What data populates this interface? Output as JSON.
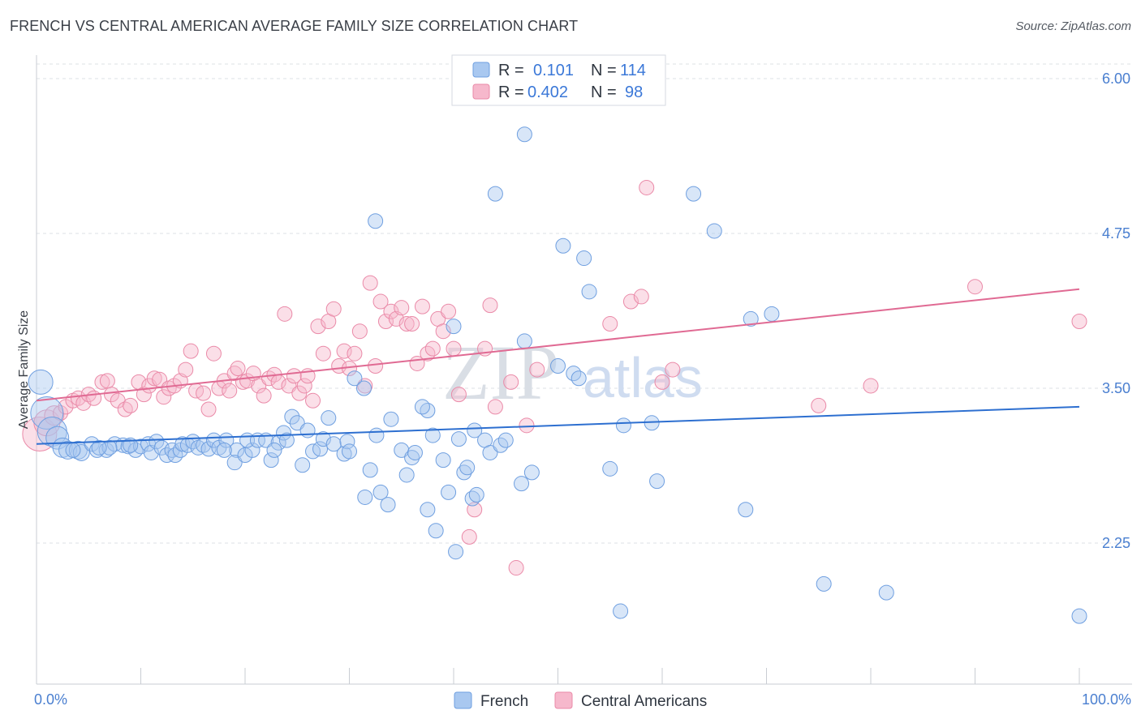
{
  "header": {
    "title": "FRENCH VS CENTRAL AMERICAN AVERAGE FAMILY SIZE CORRELATION CHART",
    "source": "Source: ZipAtlas.com"
  },
  "watermark": {
    "zip": "ZIP",
    "atlas": "atlas"
  },
  "legend": {
    "rows": [
      {
        "r_label": "R =",
        "r_value": "0.101",
        "n_label": "N =",
        "n_value": "114"
      },
      {
        "r_label": "R =",
        "r_value": "0.402",
        "n_label": "N =",
        "n_value": "98"
      }
    ]
  },
  "bottom_legend": {
    "french": "French",
    "central": "Central Americans"
  },
  "colors": {
    "french_fill": "#a9c8f0",
    "french_stroke": "#6f9fe0",
    "french_line": "#2d6fd0",
    "central_fill": "#f6b8cc",
    "central_stroke": "#ea8aa8",
    "central_line": "#e06a93",
    "axis_text": "#4a7fd0",
    "grid": "#dde1e6"
  },
  "chart_data": {
    "type": "scatter",
    "title": "FRENCH VS CENTRAL AMERICAN AVERAGE FAMILY SIZE CORRELATION CHART",
    "xlabel": "",
    "ylabel": "Average Family Size",
    "xlim": [
      0,
      100
    ],
    "ylim": [
      1.0,
      6.15
    ],
    "y_ticks": [
      2.25,
      3.5,
      4.75,
      6.0
    ],
    "y_tick_labels": [
      "2.25",
      "3.50",
      "4.75",
      "6.00"
    ],
    "x_tick_labels": [
      "0.0%",
      "100.0%"
    ],
    "grid": "horizontal dashed",
    "series": [
      {
        "name": "French",
        "r": 0.101,
        "n": 114,
        "trend": [
          [
            0,
            3.05
          ],
          [
            100,
            3.35
          ]
        ],
        "points": [
          [
            0.4,
            3.55,
            24
          ],
          [
            1.0,
            3.3,
            34
          ],
          [
            1.5,
            3.15,
            30
          ],
          [
            2.0,
            3.1,
            22
          ],
          [
            2.5,
            3.02,
            18
          ],
          [
            3.0,
            3.0,
            16
          ],
          [
            4.0,
            3.0,
            16
          ],
          [
            4.3,
            2.98,
            14
          ],
          [
            5.3,
            3.05,
            12
          ],
          [
            5.8,
            3.0,
            12
          ],
          [
            6.7,
            3.0,
            12
          ],
          [
            7.5,
            3.05,
            12
          ],
          [
            8.3,
            3.04,
            12
          ],
          [
            8.8,
            3.03,
            12
          ],
          [
            9.5,
            3.0,
            12
          ],
          [
            10.0,
            3.03,
            12
          ],
          [
            10.7,
            3.05,
            12
          ],
          [
            11.0,
            2.98,
            12
          ],
          [
            11.5,
            3.07,
            12
          ],
          [
            12.0,
            3.02,
            12
          ],
          [
            12.5,
            2.96,
            12
          ],
          [
            13.0,
            3.0,
            12
          ],
          [
            13.3,
            2.96,
            12
          ],
          [
            13.8,
            3.0,
            12
          ],
          [
            14.0,
            3.05,
            12
          ],
          [
            14.5,
            3.04,
            12
          ],
          [
            15.0,
            3.07,
            12
          ],
          [
            15.5,
            3.02,
            12
          ],
          [
            16.0,
            3.04,
            12
          ],
          [
            16.5,
            3.01,
            12
          ],
          [
            17.0,
            3.08,
            12
          ],
          [
            17.5,
            3.02,
            12
          ],
          [
            18.2,
            3.08,
            12
          ],
          [
            19.2,
            3.0,
            12
          ],
          [
            19.0,
            2.9,
            12
          ],
          [
            20.0,
            2.96,
            12
          ],
          [
            20.7,
            3.0,
            12
          ],
          [
            20.2,
            3.08,
            12
          ],
          [
            21.2,
            3.08,
            12
          ],
          [
            22.0,
            3.08,
            12
          ],
          [
            22.5,
            2.92,
            12
          ],
          [
            23.2,
            3.06,
            12
          ],
          [
            23.7,
            3.14,
            12
          ],
          [
            24.5,
            3.27,
            12
          ],
          [
            25.0,
            3.22,
            12
          ],
          [
            25.5,
            2.88,
            12
          ],
          [
            26.0,
            3.16,
            12
          ],
          [
            26.5,
            2.99,
            12
          ],
          [
            27.2,
            3.01,
            12
          ],
          [
            27.5,
            3.09,
            12
          ],
          [
            28.0,
            3.26,
            12
          ],
          [
            28.5,
            3.05,
            12
          ],
          [
            29.5,
            2.97,
            12
          ],
          [
            29.8,
            3.07,
            12
          ],
          [
            30.5,
            3.58,
            12
          ],
          [
            31.4,
            3.5,
            12
          ],
          [
            32.0,
            2.84,
            12
          ],
          [
            31.5,
            2.62,
            12
          ],
          [
            32.6,
            3.12,
            12
          ],
          [
            33.0,
            2.66,
            12
          ],
          [
            33.7,
            2.56,
            12
          ],
          [
            34.0,
            3.25,
            12
          ],
          [
            35.0,
            3.0,
            12
          ],
          [
            35.5,
            2.8,
            12
          ],
          [
            36.0,
            2.94,
            12
          ],
          [
            36.3,
            2.98,
            12
          ],
          [
            37.5,
            3.32,
            12
          ],
          [
            37.0,
            3.35,
            12
          ],
          [
            38.0,
            3.12,
            12
          ],
          [
            38.3,
            2.35,
            12
          ],
          [
            39.0,
            2.92,
            12
          ],
          [
            39.5,
            2.66,
            12
          ],
          [
            40.0,
            4.0,
            12
          ],
          [
            40.2,
            2.18,
            12
          ],
          [
            40.5,
            3.09,
            12
          ],
          [
            41.0,
            2.82,
            12
          ],
          [
            41.8,
            2.61,
            12
          ],
          [
            42.2,
            2.64,
            12
          ],
          [
            42.0,
            3.16,
            12
          ],
          [
            43.0,
            3.08,
            12
          ],
          [
            43.5,
            2.98,
            12
          ],
          [
            46.5,
            2.73,
            12
          ],
          [
            46.8,
            3.88,
            12
          ],
          [
            46.8,
            5.55,
            12
          ],
          [
            47.5,
            2.82,
            12
          ],
          [
            50.5,
            4.65,
            12
          ],
          [
            52.5,
            4.55,
            12
          ],
          [
            51.5,
            3.62,
            12
          ],
          [
            50.0,
            3.68,
            12
          ],
          [
            52.0,
            3.58,
            12
          ],
          [
            53.0,
            4.28,
            12
          ],
          [
            55.0,
            2.85,
            12
          ],
          [
            56.0,
            1.7,
            12
          ],
          [
            59.0,
            3.22,
            12
          ],
          [
            59.5,
            2.75,
            12
          ],
          [
            63.0,
            5.07,
            12
          ],
          [
            65.0,
            4.77,
            12
          ],
          [
            68.0,
            2.52,
            12
          ],
          [
            68.5,
            4.06,
            12
          ],
          [
            70.5,
            4.1,
            12
          ],
          [
            75.5,
            1.92,
            12
          ],
          [
            81.5,
            1.85,
            12
          ],
          [
            100.0,
            1.66,
            12
          ],
          [
            30.0,
            2.99,
            12
          ],
          [
            3.5,
            3.0,
            12
          ],
          [
            9.0,
            3.04,
            12
          ],
          [
            18.0,
            3.0,
            12
          ],
          [
            24.0,
            3.08,
            12
          ],
          [
            37.5,
            2.52,
            12
          ],
          [
            41.3,
            2.86,
            12
          ],
          [
            56.3,
            3.2,
            12
          ],
          [
            7.0,
            3.02,
            12
          ],
          [
            22.8,
            3.0,
            12
          ],
          [
            32.5,
            4.85,
            12
          ],
          [
            44.0,
            5.07,
            12
          ],
          [
            44.5,
            3.04,
            12
          ],
          [
            45.0,
            3.08,
            12
          ],
          [
            6.0,
            3.02,
            12
          ]
        ]
      },
      {
        "name": "Central Americans",
        "r": 0.402,
        "n": 98,
        "trend": [
          [
            0,
            3.4
          ],
          [
            100,
            4.3
          ]
        ],
        "points": [
          [
            0.3,
            3.13,
            36
          ],
          [
            1.0,
            3.22,
            26
          ],
          [
            1.7,
            3.28,
            18
          ],
          [
            2.3,
            3.3,
            12
          ],
          [
            2.8,
            3.35,
            12
          ],
          [
            3.5,
            3.4,
            12
          ],
          [
            4.0,
            3.42,
            12
          ],
          [
            4.5,
            3.38,
            12
          ],
          [
            5.0,
            3.45,
            12
          ],
          [
            5.5,
            3.42,
            12
          ],
          [
            6.3,
            3.55,
            12
          ],
          [
            6.8,
            3.56,
            12
          ],
          [
            7.2,
            3.45,
            12
          ],
          [
            7.8,
            3.4,
            12
          ],
          [
            8.5,
            3.33,
            12
          ],
          [
            9.0,
            3.36,
            12
          ],
          [
            9.8,
            3.55,
            12
          ],
          [
            10.3,
            3.45,
            12
          ],
          [
            10.8,
            3.52,
            12
          ],
          [
            11.3,
            3.58,
            12
          ],
          [
            11.8,
            3.57,
            12
          ],
          [
            12.2,
            3.43,
            12
          ],
          [
            12.7,
            3.5,
            12
          ],
          [
            13.2,
            3.52,
            12
          ],
          [
            13.8,
            3.56,
            12
          ],
          [
            14.3,
            3.65,
            12
          ],
          [
            14.8,
            3.8,
            12
          ],
          [
            15.3,
            3.48,
            12
          ],
          [
            16.0,
            3.46,
            12
          ],
          [
            16.5,
            3.33,
            12
          ],
          [
            17.0,
            3.78,
            12
          ],
          [
            17.5,
            3.5,
            12
          ],
          [
            18.0,
            3.56,
            12
          ],
          [
            18.5,
            3.48,
            12
          ],
          [
            19.0,
            3.62,
            12
          ],
          [
            19.3,
            3.66,
            12
          ],
          [
            19.8,
            3.55,
            12
          ],
          [
            20.2,
            3.56,
            12
          ],
          [
            20.8,
            3.62,
            12
          ],
          [
            21.3,
            3.52,
            12
          ],
          [
            21.8,
            3.44,
            12
          ],
          [
            22.3,
            3.58,
            12
          ],
          [
            22.8,
            3.61,
            12
          ],
          [
            23.2,
            3.55,
            12
          ],
          [
            23.8,
            4.1,
            12
          ],
          [
            24.2,
            3.52,
            12
          ],
          [
            24.7,
            3.6,
            12
          ],
          [
            25.2,
            3.46,
            12
          ],
          [
            25.7,
            3.52,
            12
          ],
          [
            26.0,
            3.6,
            12
          ],
          [
            26.5,
            3.4,
            12
          ],
          [
            27.0,
            4.0,
            12
          ],
          [
            27.5,
            3.78,
            12
          ],
          [
            28.0,
            4.04,
            12
          ],
          [
            28.5,
            4.14,
            12
          ],
          [
            29.0,
            3.68,
            12
          ],
          [
            29.5,
            3.8,
            12
          ],
          [
            30.0,
            3.66,
            12
          ],
          [
            30.5,
            3.78,
            12
          ],
          [
            31.0,
            3.96,
            12
          ],
          [
            31.5,
            3.52,
            12
          ],
          [
            32.0,
            4.35,
            12
          ],
          [
            32.5,
            3.68,
            12
          ],
          [
            33.0,
            4.2,
            12
          ],
          [
            33.5,
            4.04,
            12
          ],
          [
            34.0,
            4.12,
            12
          ],
          [
            34.5,
            4.06,
            12
          ],
          [
            35.0,
            4.15,
            12
          ],
          [
            35.5,
            4.02,
            12
          ],
          [
            36.0,
            4.02,
            12
          ],
          [
            36.5,
            3.7,
            12
          ],
          [
            37.0,
            4.16,
            12
          ],
          [
            37.5,
            3.78,
            12
          ],
          [
            38.0,
            3.82,
            12
          ],
          [
            38.5,
            4.06,
            12
          ],
          [
            39.0,
            3.96,
            12
          ],
          [
            39.5,
            4.12,
            12
          ],
          [
            40.0,
            3.82,
            12
          ],
          [
            40.5,
            3.45,
            12
          ],
          [
            41.5,
            2.3,
            12
          ],
          [
            42.0,
            2.52,
            12
          ],
          [
            43.0,
            3.82,
            12
          ],
          [
            43.5,
            4.17,
            12
          ],
          [
            44.0,
            3.35,
            12
          ],
          [
            45.5,
            3.55,
            12
          ],
          [
            46.0,
            2.05,
            12
          ],
          [
            47.0,
            3.2,
            12
          ],
          [
            48.0,
            3.65,
            12
          ],
          [
            55.0,
            4.02,
            12
          ],
          [
            57.0,
            4.2,
            12
          ],
          [
            58.0,
            4.24,
            12
          ],
          [
            60.0,
            3.55,
            12
          ],
          [
            61.0,
            3.65,
            12
          ],
          [
            75.0,
            3.36,
            12
          ],
          [
            80.0,
            3.52,
            12
          ],
          [
            90.0,
            4.32,
            12
          ],
          [
            100.0,
            4.04,
            12
          ],
          [
            58.5,
            5.12,
            12
          ]
        ]
      }
    ]
  }
}
